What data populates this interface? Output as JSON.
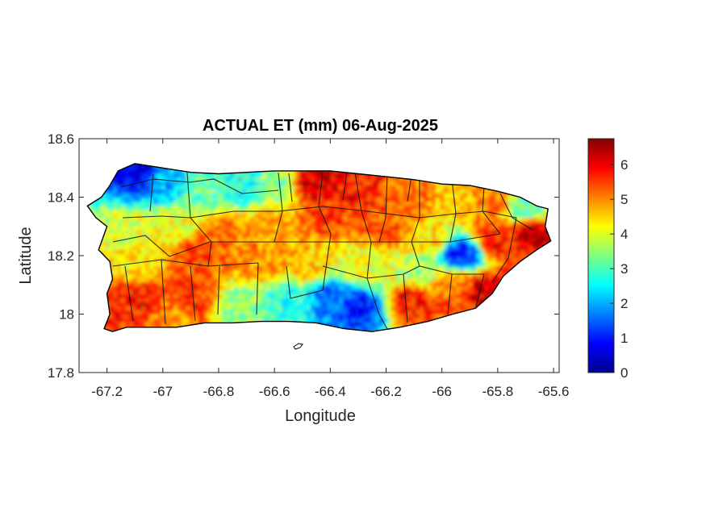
{
  "chart_data": {
    "type": "heatmap",
    "title": "ACTUAL ET (mm) 06-Aug-2025",
    "xlabel": "Longitude",
    "ylabel": "Latitude",
    "xlim": [
      -67.3,
      -65.58
    ],
    "ylim": [
      17.8,
      18.6
    ],
    "x_ticks": [
      -67.2,
      -67,
      -66.8,
      -66.6,
      -66.4,
      -66.2,
      -66,
      -65.8,
      -65.6
    ],
    "x_tick_labels": [
      "-67.2",
      "-67",
      "-66.8",
      "-66.6",
      "-66.4",
      "-66.2",
      "-66",
      "-65.8",
      "-65.6"
    ],
    "y_ticks": [
      17.8,
      18,
      18.2,
      18.4,
      18.6
    ],
    "y_tick_labels": [
      "17.8",
      "18",
      "18.2",
      "18.4",
      "18.6"
    ],
    "colorbar": {
      "colormap": "jet",
      "clim": [
        0,
        6.75
      ],
      "ticks": [
        0,
        1,
        2,
        3,
        4,
        5,
        6
      ],
      "tick_labels": [
        "0",
        "1",
        "2",
        "3",
        "4",
        "5",
        "6"
      ]
    },
    "grid": false,
    "island_outline": [
      [
        -67.27,
        18.37
      ],
      [
        -67.22,
        18.4
      ],
      [
        -67.19,
        18.44
      ],
      [
        -67.16,
        18.49
      ],
      [
        -67.1,
        18.515
      ],
      [
        -67.0,
        18.5
      ],
      [
        -66.9,
        18.485
      ],
      [
        -66.8,
        18.48
      ],
      [
        -66.7,
        18.485
      ],
      [
        -66.6,
        18.49
      ],
      [
        -66.5,
        18.49
      ],
      [
        -66.4,
        18.49
      ],
      [
        -66.3,
        18.48
      ],
      [
        -66.2,
        18.47
      ],
      [
        -66.1,
        18.46
      ],
      [
        -66.0,
        18.445
      ],
      [
        -65.9,
        18.44
      ],
      [
        -65.8,
        18.42
      ],
      [
        -65.72,
        18.4
      ],
      [
        -65.66,
        18.37
      ],
      [
        -65.62,
        18.36
      ],
      [
        -65.63,
        18.3
      ],
      [
        -65.61,
        18.25
      ],
      [
        -65.66,
        18.22
      ],
      [
        -65.72,
        18.18
      ],
      [
        -65.78,
        18.13
      ],
      [
        -65.82,
        18.07
      ],
      [
        -65.88,
        18.02
      ],
      [
        -65.96,
        18.0
      ],
      [
        -66.05,
        17.975
      ],
      [
        -66.15,
        17.955
      ],
      [
        -66.25,
        17.94
      ],
      [
        -66.35,
        17.95
      ],
      [
        -66.45,
        17.97
      ],
      [
        -66.55,
        17.975
      ],
      [
        -66.65,
        17.975
      ],
      [
        -66.75,
        17.97
      ],
      [
        -66.85,
        17.97
      ],
      [
        -66.95,
        17.955
      ],
      [
        -67.05,
        17.955
      ],
      [
        -67.13,
        17.955
      ],
      [
        -67.18,
        17.94
      ],
      [
        -67.21,
        17.95
      ],
      [
        -67.19,
        18.0
      ],
      [
        -67.2,
        18.07
      ],
      [
        -67.18,
        18.12
      ],
      [
        -67.19,
        18.18
      ],
      [
        -67.23,
        18.22
      ],
      [
        -67.2,
        18.3
      ],
      [
        -67.24,
        18.33
      ],
      [
        -67.27,
        18.37
      ]
    ],
    "value_field_regions": [
      {
        "lon": -67.08,
        "lat": 18.48,
        "value": 0.6
      },
      {
        "lon": -67.0,
        "lat": 18.45,
        "value": 2.0
      },
      {
        "lon": -66.86,
        "lat": 18.43,
        "value": 3.2
      },
      {
        "lon": -66.72,
        "lat": 18.44,
        "value": 2.6
      },
      {
        "lon": -66.6,
        "lat": 18.43,
        "value": 3.4
      },
      {
        "lon": -66.45,
        "lat": 18.45,
        "value": 6.2
      },
      {
        "lon": -66.3,
        "lat": 18.43,
        "value": 5.8
      },
      {
        "lon": -66.12,
        "lat": 18.42,
        "value": 5.2
      },
      {
        "lon": -65.95,
        "lat": 18.41,
        "value": 4.6
      },
      {
        "lon": -65.82,
        "lat": 18.39,
        "value": 5.2
      },
      {
        "lon": -65.7,
        "lat": 18.36,
        "value": 3.0
      },
      {
        "lon": -65.68,
        "lat": 18.28,
        "value": 6.3
      },
      {
        "lon": -65.8,
        "lat": 18.25,
        "value": 5.8
      },
      {
        "lon": -65.93,
        "lat": 18.2,
        "value": 1.2
      },
      {
        "lon": -66.05,
        "lat": 18.25,
        "value": 4.4
      },
      {
        "lon": -66.2,
        "lat": 18.3,
        "value": 5.4
      },
      {
        "lon": -66.4,
        "lat": 18.33,
        "value": 5.5
      },
      {
        "lon": -66.6,
        "lat": 18.3,
        "value": 4.8
      },
      {
        "lon": -66.78,
        "lat": 18.27,
        "value": 5.2
      },
      {
        "lon": -66.95,
        "lat": 18.3,
        "value": 4.2
      },
      {
        "lon": -67.12,
        "lat": 18.28,
        "value": 4.0
      },
      {
        "lon": -67.1,
        "lat": 18.18,
        "value": 4.3
      },
      {
        "lon": -66.88,
        "lat": 18.2,
        "value": 5.6
      },
      {
        "lon": -66.65,
        "lat": 18.18,
        "value": 5.0
      },
      {
        "lon": -66.48,
        "lat": 18.16,
        "value": 4.6
      },
      {
        "lon": -66.28,
        "lat": 18.16,
        "value": 4.1
      },
      {
        "lon": -66.08,
        "lat": 18.15,
        "value": 3.6
      },
      {
        "lon": -65.95,
        "lat": 18.1,
        "value": 5.2
      },
      {
        "lon": -65.85,
        "lat": 18.08,
        "value": 6.2
      },
      {
        "lon": -66.1,
        "lat": 18.04,
        "value": 5.8
      },
      {
        "lon": -66.3,
        "lat": 18.02,
        "value": 1.0
      },
      {
        "lon": -66.4,
        "lat": 18.06,
        "value": 1.6
      },
      {
        "lon": -66.55,
        "lat": 18.04,
        "value": 2.8
      },
      {
        "lon": -66.72,
        "lat": 18.03,
        "value": 3.4
      },
      {
        "lon": -66.9,
        "lat": 18.05,
        "value": 5.6
      },
      {
        "lon": -67.1,
        "lat": 18.05,
        "value": 5.8
      },
      {
        "lon": -66.95,
        "lat": 17.98,
        "value": 5.0
      }
    ]
  }
}
